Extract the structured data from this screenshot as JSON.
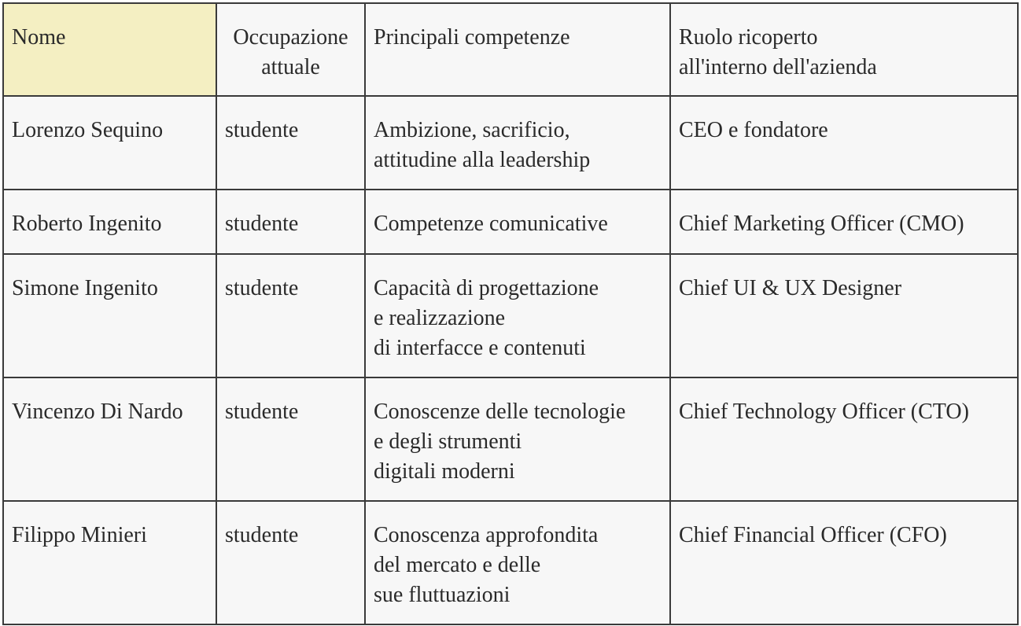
{
  "table": {
    "headers": [
      "Nome",
      "Occupazione\nattuale",
      "Principali competenze",
      "Ruolo ricoperto\nall'interno dell'azienda"
    ],
    "rows": [
      [
        "Lorenzo Sequino",
        "studente",
        "Ambizione, sacrificio,\nattitudine alla leadership",
        "CEO e fondatore"
      ],
      [
        "Roberto Ingenito",
        "studente",
        "Competenze comunicative",
        "Chief Marketing Officer (CMO)"
      ],
      [
        "Simone Ingenito",
        "studente",
        "Capacità di progettazione\ne realizzazione\ndi interfacce e contenuti",
        "Chief UI & UX Designer"
      ],
      [
        "Vincenzo Di Nardo",
        "studente",
        "Conoscenze delle tecnologie\ne degli strumenti\ndigitali moderni",
        "Chief Technology Officer (CTO)"
      ],
      [
        "Filippo Minieri",
        "studente",
        "Conoscenza approfondita\ndel mercato e delle\nsue fluttuazioni",
        "Chief Financial Officer (CFO)"
      ]
    ]
  },
  "colors": {
    "header_highlight": "#f4efc2",
    "cell_background": "#f7f7f7",
    "border": "#3a3a3a",
    "text": "#2a2a2a"
  }
}
